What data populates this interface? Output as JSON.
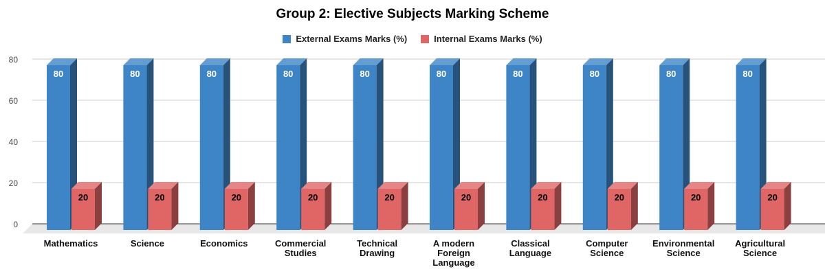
{
  "chart_data": {
    "type": "bar",
    "title": "Group 2: Elective Subjects Marking Scheme",
    "categories": [
      [
        "Mathematics"
      ],
      [
        "Science"
      ],
      [
        "Economics"
      ],
      [
        "Commercial",
        "Studies"
      ],
      [
        "Technical",
        "Drawing"
      ],
      [
        "A modern",
        "Foreign",
        "Language"
      ],
      [
        "Classical",
        "Language"
      ],
      [
        "Computer",
        "Science"
      ],
      [
        "Environmental",
        "Science"
      ],
      [
        "Agricultural",
        "Science"
      ]
    ],
    "series": [
      {
        "name": "External Exams Marks (%)",
        "color": "#3d85c6",
        "values": [
          80,
          80,
          80,
          80,
          80,
          80,
          80,
          80,
          80,
          80
        ]
      },
      {
        "name": "Internal Exams Marks (%)",
        "color": "#e06666",
        "values": [
          20,
          20,
          20,
          20,
          20,
          20,
          20,
          20,
          20,
          20
        ]
      }
    ],
    "yticks": [
      0,
      20,
      40,
      60,
      80
    ],
    "ylim": [
      0,
      80
    ],
    "grid": true,
    "legend_position": "top-center",
    "style": "3d"
  }
}
